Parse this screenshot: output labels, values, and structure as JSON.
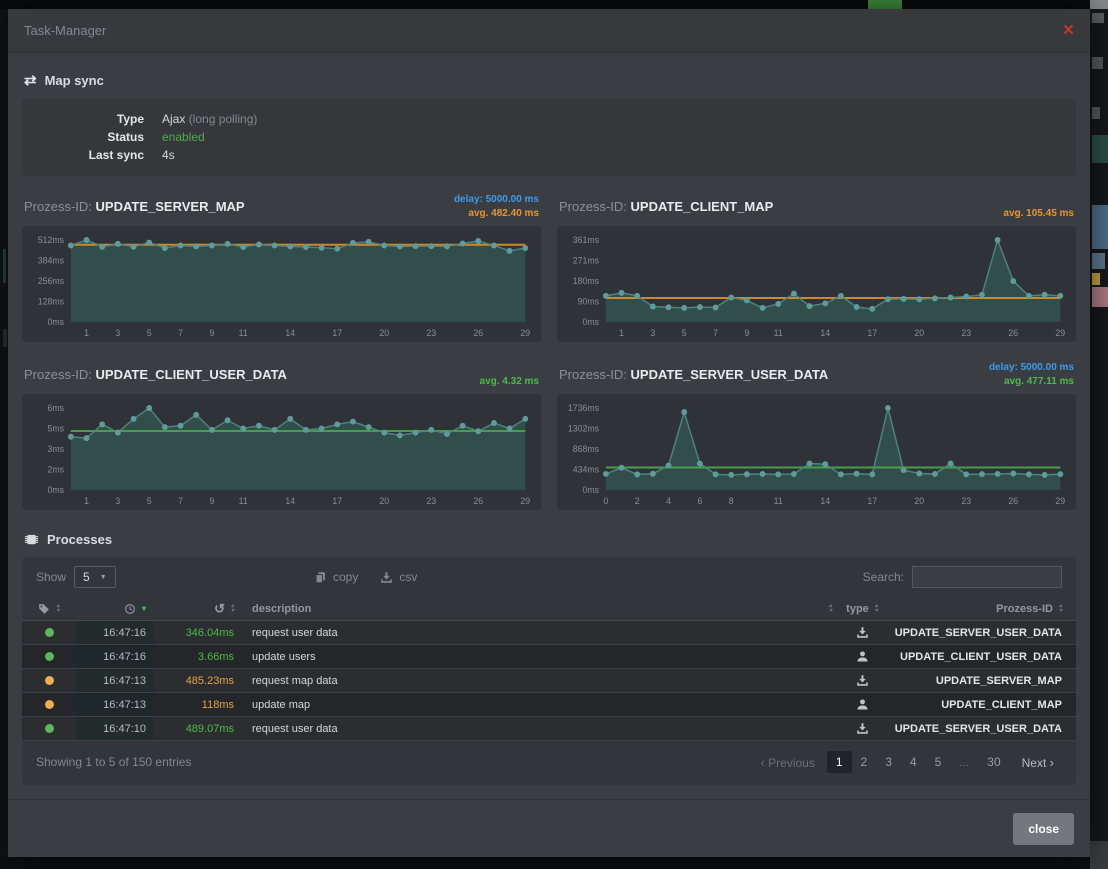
{
  "window": {
    "title": "Task-Manager",
    "close_icon": "×"
  },
  "map_sync": {
    "heading": "Map sync",
    "sync_glyph": "⇄",
    "rows": [
      {
        "label": "Type",
        "value": "Ajax",
        "extra": "(long polling)"
      },
      {
        "label": "Status",
        "value": "enabled"
      },
      {
        "label": "Last sync",
        "value": "4s"
      }
    ]
  },
  "chart_data": [
    {
      "type": "area",
      "title_prefix": "Prozess-ID:",
      "name": "UPDATE_SERVER_MAP",
      "delay_label": "delay: 5000.00 ms",
      "avg_label": "avg. 482.40 ms",
      "avg_value": 482.4,
      "avg_color": "#cf8a25",
      "y_ticks": [
        "512ms",
        "384ms",
        "256ms",
        "128ms",
        "0ms"
      ],
      "y_max": 512,
      "x_ticks": [
        1,
        3,
        5,
        7,
        9,
        11,
        14,
        17,
        20,
        23,
        26,
        29
      ],
      "values": [
        478,
        512,
        470,
        488,
        470,
        496,
        462,
        478,
        472,
        478,
        488,
        468,
        484,
        478,
        472,
        468,
        464,
        458,
        494,
        500,
        478,
        472,
        474,
        474,
        472,
        490,
        506,
        478,
        444,
        462
      ]
    },
    {
      "type": "area",
      "title_prefix": "Prozess-ID:",
      "name": "UPDATE_CLIENT_MAP",
      "delay_label": "",
      "avg_label": "avg. 105.45 ms",
      "avg_value": 105.45,
      "avg_color": "#cf8a25",
      "y_ticks": [
        "361ms",
        "271ms",
        "180ms",
        "90ms",
        "0ms"
      ],
      "y_max": 361,
      "x_ticks": [
        1,
        3,
        5,
        7,
        9,
        11,
        14,
        17,
        20,
        23,
        26,
        29
      ],
      "values": [
        115,
        128,
        115,
        68,
        65,
        62,
        66,
        64,
        108,
        95,
        62,
        80,
        125,
        70,
        82,
        115,
        66,
        58,
        100,
        102,
        100,
        104,
        108,
        112,
        120,
        361,
        180,
        115,
        120,
        115
      ]
    },
    {
      "type": "area",
      "title_prefix": "Prozess-ID:",
      "name": "UPDATE_CLIENT_USER_DATA",
      "delay_label": "",
      "avg_label": "avg. 4.32 ms",
      "avg_value": 4.32,
      "avg_color": "#44a04a",
      "y_ticks": [
        "6ms",
        "5ms",
        "3ms",
        "2ms",
        "0ms"
      ],
      "y_max": 6,
      "x_ticks": [
        1,
        3,
        5,
        7,
        9,
        11,
        14,
        17,
        20,
        23,
        26,
        29
      ],
      "values": [
        3.9,
        3.8,
        4.8,
        4.2,
        5.2,
        6.0,
        4.6,
        4.7,
        5.5,
        4.4,
        5.1,
        4.5,
        4.7,
        4.4,
        5.2,
        4.4,
        4.5,
        4.8,
        5.0,
        4.6,
        4.2,
        4.0,
        4.2,
        4.4,
        4.1,
        4.7,
        4.3,
        4.9,
        4.5,
        5.2
      ]
    },
    {
      "type": "area",
      "title_prefix": "Prozess-ID:",
      "name": "UPDATE_SERVER_USER_DATA",
      "delay_label": "delay: 5000.00 ms",
      "avg_label": "avg. 477.11 ms",
      "avg_value": 477.11,
      "avg_color": "#44a04a",
      "y_ticks": [
        "1736ms",
        "1302ms",
        "868ms",
        "434ms",
        "0ms"
      ],
      "y_max": 1736,
      "x_ticks": [
        0,
        2,
        4,
        6,
        8,
        11,
        14,
        17,
        20,
        23,
        26,
        29
      ],
      "values": [
        340,
        470,
        330,
        345,
        520,
        1650,
        560,
        330,
        320,
        335,
        340,
        330,
        340,
        560,
        545,
        330,
        345,
        330,
        1736,
        420,
        350,
        340,
        560,
        330,
        335,
        340,
        350,
        330,
        320,
        335
      ]
    }
  ],
  "processes": {
    "heading": "Processes",
    "show_label": "Show",
    "show_value": "5",
    "copy_label": "copy",
    "csv_label": "csv",
    "search_label": "Search:",
    "columns": {
      "description": "description",
      "type": "type",
      "prozess_id": "Prozess-ID"
    },
    "rows": [
      {
        "status": "green",
        "time": "16:47:16",
        "duration": "346.04ms",
        "description": "request user data",
        "type": "server",
        "prozess_id": "UPDATE_SERVER_USER_DATA"
      },
      {
        "status": "green",
        "time": "16:47:16",
        "duration": "3.66ms",
        "description": "update users",
        "type": "client",
        "prozess_id": "UPDATE_CLIENT_USER_DATA"
      },
      {
        "status": "orange",
        "time": "16:47:13",
        "duration": "485.23ms",
        "description": "request map data",
        "type": "server",
        "prozess_id": "UPDATE_SERVER_MAP"
      },
      {
        "status": "orange",
        "time": "16:47:13",
        "duration": "118ms",
        "description": "update map",
        "type": "client",
        "prozess_id": "UPDATE_CLIENT_MAP"
      },
      {
        "status": "green",
        "time": "16:47:10",
        "duration": "489.07ms",
        "description": "request user data",
        "type": "server",
        "prozess_id": "UPDATE_SERVER_USER_DATA"
      }
    ],
    "footer": {
      "info": "Showing 1 to 5 of 150 entries",
      "previous": "Previous",
      "next": "Next",
      "pages": [
        "1",
        "2",
        "3",
        "4",
        "5",
        "…",
        "30"
      ],
      "active_page": "1"
    }
  },
  "footer": {
    "close_label": "close"
  },
  "colors": {
    "accent_green": "#4cbb4c",
    "accent_orange": "#e8962e",
    "accent_blue": "#3f9be8",
    "close_red": "#c0392b",
    "chart_line": "#4e8380",
    "chart_fill": "#33514d",
    "chart_dot": "#5f9b9b",
    "status_green": "#5cb85c",
    "status_orange": "#f0ad4e"
  }
}
